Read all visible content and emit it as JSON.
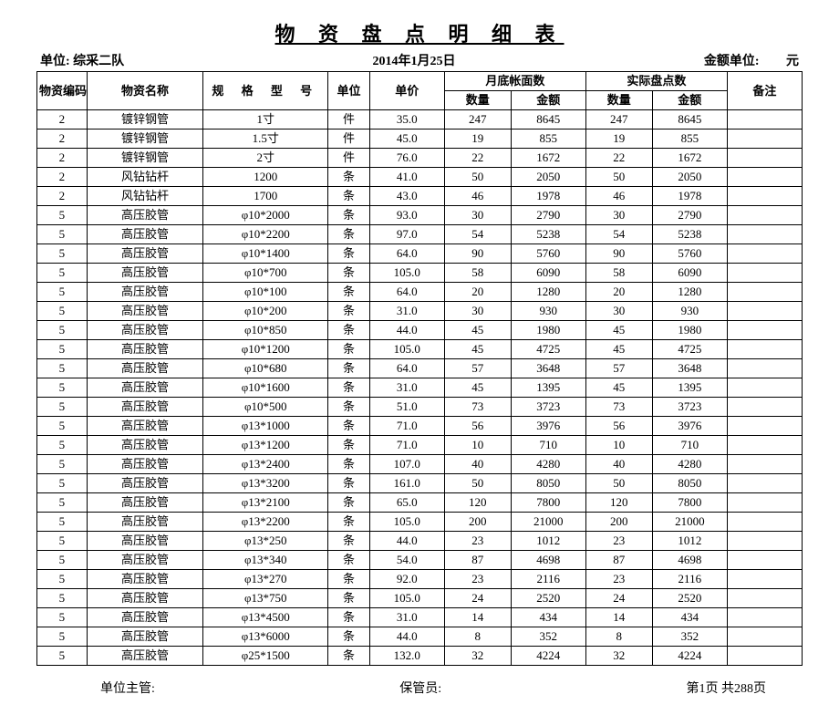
{
  "title": "物 资 盘 点 明 细 表",
  "meta": {
    "dept_label": "单位:",
    "dept_value": "综采二队",
    "date": "2014年1月25日",
    "amount_unit_label": "金额单位:",
    "amount_unit_value": "元"
  },
  "headers": {
    "code": "物资编码",
    "name": "物资名称",
    "spec": "规 格 型 号",
    "unit": "单位",
    "price": "单价",
    "book": "月底帐面数",
    "actual": "实际盘点数",
    "remark": "备注",
    "qty": "数量",
    "amount": "金额"
  },
  "rows": [
    {
      "code": "2",
      "name": "镀锌钢管",
      "spec": "1寸",
      "unit": "件",
      "price": "35.0",
      "bq": "247",
      "ba": "8645",
      "aq": "247",
      "aa": "8645",
      "r": ""
    },
    {
      "code": "2",
      "name": "镀锌钢管",
      "spec": "1.5寸",
      "unit": "件",
      "price": "45.0",
      "bq": "19",
      "ba": "855",
      "aq": "19",
      "aa": "855",
      "r": ""
    },
    {
      "code": "2",
      "name": "镀锌钢管",
      "spec": "2寸",
      "unit": "件",
      "price": "76.0",
      "bq": "22",
      "ba": "1672",
      "aq": "22",
      "aa": "1672",
      "r": ""
    },
    {
      "code": "2",
      "name": "风钻钻杆",
      "spec": "1200",
      "unit": "条",
      "price": "41.0",
      "bq": "50",
      "ba": "2050",
      "aq": "50",
      "aa": "2050",
      "r": ""
    },
    {
      "code": "2",
      "name": "风钻钻杆",
      "spec": "1700",
      "unit": "条",
      "price": "43.0",
      "bq": "46",
      "ba": "1978",
      "aq": "46",
      "aa": "1978",
      "r": ""
    },
    {
      "code": "5",
      "name": "高压胶管",
      "spec": "φ10*2000",
      "unit": "条",
      "price": "93.0",
      "bq": "30",
      "ba": "2790",
      "aq": "30",
      "aa": "2790",
      "r": ""
    },
    {
      "code": "5",
      "name": "高压胶管",
      "spec": "φ10*2200",
      "unit": "条",
      "price": "97.0",
      "bq": "54",
      "ba": "5238",
      "aq": "54",
      "aa": "5238",
      "r": ""
    },
    {
      "code": "5",
      "name": "高压胶管",
      "spec": "φ10*1400",
      "unit": "条",
      "price": "64.0",
      "bq": "90",
      "ba": "5760",
      "aq": "90",
      "aa": "5760",
      "r": ""
    },
    {
      "code": "5",
      "name": "高压胶管",
      "spec": "φ10*700",
      "unit": "条",
      "price": "105.0",
      "bq": "58",
      "ba": "6090",
      "aq": "58",
      "aa": "6090",
      "r": ""
    },
    {
      "code": "5",
      "name": "高压胶管",
      "spec": "φ10*100",
      "unit": "条",
      "price": "64.0",
      "bq": "20",
      "ba": "1280",
      "aq": "20",
      "aa": "1280",
      "r": ""
    },
    {
      "code": "5",
      "name": "高压胶管",
      "spec": "φ10*200",
      "unit": "条",
      "price": "31.0",
      "bq": "30",
      "ba": "930",
      "aq": "30",
      "aa": "930",
      "r": ""
    },
    {
      "code": "5",
      "name": "高压胶管",
      "spec": "φ10*850",
      "unit": "条",
      "price": "44.0",
      "bq": "45",
      "ba": "1980",
      "aq": "45",
      "aa": "1980",
      "r": ""
    },
    {
      "code": "5",
      "name": "高压胶管",
      "spec": "φ10*1200",
      "unit": "条",
      "price": "105.0",
      "bq": "45",
      "ba": "4725",
      "aq": "45",
      "aa": "4725",
      "r": ""
    },
    {
      "code": "5",
      "name": "高压胶管",
      "spec": "φ10*680",
      "unit": "条",
      "price": "64.0",
      "bq": "57",
      "ba": "3648",
      "aq": "57",
      "aa": "3648",
      "r": ""
    },
    {
      "code": "5",
      "name": "高压胶管",
      "spec": "φ10*1600",
      "unit": "条",
      "price": "31.0",
      "bq": "45",
      "ba": "1395",
      "aq": "45",
      "aa": "1395",
      "r": ""
    },
    {
      "code": "5",
      "name": "高压胶管",
      "spec": "φ10*500",
      "unit": "条",
      "price": "51.0",
      "bq": "73",
      "ba": "3723",
      "aq": "73",
      "aa": "3723",
      "r": ""
    },
    {
      "code": "5",
      "name": "高压胶管",
      "spec": "φ13*1000",
      "unit": "条",
      "price": "71.0",
      "bq": "56",
      "ba": "3976",
      "aq": "56",
      "aa": "3976",
      "r": ""
    },
    {
      "code": "5",
      "name": "高压胶管",
      "spec": "φ13*1200",
      "unit": "条",
      "price": "71.0",
      "bq": "10",
      "ba": "710",
      "aq": "10",
      "aa": "710",
      "r": ""
    },
    {
      "code": "5",
      "name": "高压胶管",
      "spec": "φ13*2400",
      "unit": "条",
      "price": "107.0",
      "bq": "40",
      "ba": "4280",
      "aq": "40",
      "aa": "4280",
      "r": ""
    },
    {
      "code": "5",
      "name": "高压胶管",
      "spec": "φ13*3200",
      "unit": "条",
      "price": "161.0",
      "bq": "50",
      "ba": "8050",
      "aq": "50",
      "aa": "8050",
      "r": ""
    },
    {
      "code": "5",
      "name": "高压胶管",
      "spec": "φ13*2100",
      "unit": "条",
      "price": "65.0",
      "bq": "120",
      "ba": "7800",
      "aq": "120",
      "aa": "7800",
      "r": ""
    },
    {
      "code": "5",
      "name": "高压胶管",
      "spec": "φ13*2200",
      "unit": "条",
      "price": "105.0",
      "bq": "200",
      "ba": "21000",
      "aq": "200",
      "aa": "21000",
      "r": ""
    },
    {
      "code": "5",
      "name": "高压胶管",
      "spec": "φ13*250",
      "unit": "条",
      "price": "44.0",
      "bq": "23",
      "ba": "1012",
      "aq": "23",
      "aa": "1012",
      "r": ""
    },
    {
      "code": "5",
      "name": "高压胶管",
      "spec": "φ13*340",
      "unit": "条",
      "price": "54.0",
      "bq": "87",
      "ba": "4698",
      "aq": "87",
      "aa": "4698",
      "r": ""
    },
    {
      "code": "5",
      "name": "高压胶管",
      "spec": "φ13*270",
      "unit": "条",
      "price": "92.0",
      "bq": "23",
      "ba": "2116",
      "aq": "23",
      "aa": "2116",
      "r": ""
    },
    {
      "code": "5",
      "name": "高压胶管",
      "spec": "φ13*750",
      "unit": "条",
      "price": "105.0",
      "bq": "24",
      "ba": "2520",
      "aq": "24",
      "aa": "2520",
      "r": ""
    },
    {
      "code": "5",
      "name": "高压胶管",
      "spec": "φ13*4500",
      "unit": "条",
      "price": "31.0",
      "bq": "14",
      "ba": "434",
      "aq": "14",
      "aa": "434",
      "r": ""
    },
    {
      "code": "5",
      "name": "高压胶管",
      "spec": "φ13*6000",
      "unit": "条",
      "price": "44.0",
      "bq": "8",
      "ba": "352",
      "aq": "8",
      "aa": "352",
      "r": ""
    },
    {
      "code": "5",
      "name": "高压胶管",
      "spec": "φ25*1500",
      "unit": "条",
      "price": "132.0",
      "bq": "32",
      "ba": "4224",
      "aq": "32",
      "aa": "4224",
      "r": ""
    }
  ],
  "footer": {
    "mgr": "单位主管:",
    "keeper": "保管员:",
    "page": "第1页  共288页"
  }
}
